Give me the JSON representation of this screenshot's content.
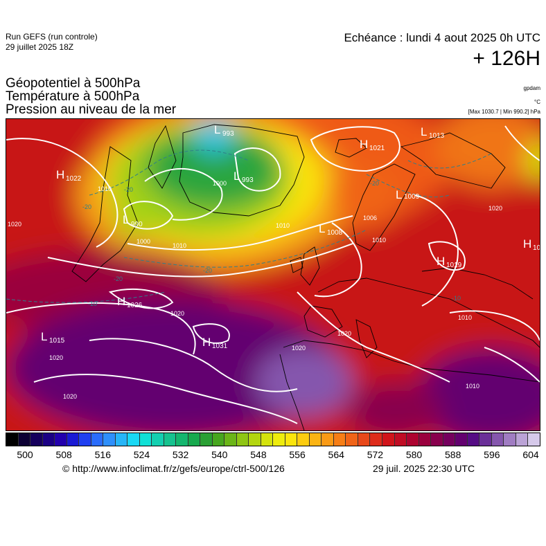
{
  "header": {
    "run_title": "Run GEFS (run controle)",
    "run_date": "29 juillet 2025 18Z",
    "echeance": "Echéance : lundi 4 aout 2025 0h UTC",
    "lead": "+ 126H"
  },
  "variables": [
    "Géopotentiel à 500hPa",
    "Température à 500hPa",
    "Pression au niveau de la mer"
  ],
  "units": {
    "gpdam": "gpdam",
    "celsius": "°C",
    "maxmin": "[Max 1030.7 | Min 990.2] hPa"
  },
  "colorbar": {
    "colors": [
      "#000000",
      "#0c0034",
      "#15005c",
      "#1b0084",
      "#2300ad",
      "#1a1ad4",
      "#1f3ff0",
      "#2a6cfb",
      "#2e8ffb",
      "#27b5f7",
      "#1ad8f4",
      "#10e0d6",
      "#14cfb0",
      "#16c28e",
      "#14b66e",
      "#17a94e",
      "#2a9f34",
      "#47a61f",
      "#6bb518",
      "#8fc514",
      "#b3d610",
      "#d4e30d",
      "#eeec0d",
      "#fbe50d",
      "#fccc10",
      "#fbb414",
      "#f99a16",
      "#f67e16",
      "#f06418",
      "#e8481a",
      "#de2c1b",
      "#d0141b",
      "#c00c24",
      "#ad0430",
      "#9a003e",
      "#88004d",
      "#75005e",
      "#63006f",
      "#550c84",
      "#6a2f98",
      "#8556ad",
      "#a07cc2",
      "#bba3d6",
      "#d6c9ea"
    ],
    "tick_labels": [
      "500",
      "508",
      "516",
      "524",
      "532",
      "540",
      "548",
      "556",
      "564",
      "572",
      "580",
      "588",
      "596",
      "604"
    ]
  },
  "map_labels": {
    "highs": [
      {
        "letter": "H",
        "value": "1022"
      },
      {
        "letter": "H",
        "value": "1021"
      },
      {
        "letter": "H",
        "value": "1026"
      },
      {
        "letter": "H",
        "value": "1031"
      },
      {
        "letter": "H",
        "value": "1019"
      },
      {
        "letter": "H",
        "value": "10"
      }
    ],
    "lows": [
      {
        "letter": "L",
        "value": "993"
      },
      {
        "letter": "L",
        "value": "993"
      },
      {
        "letter": "L",
        "value": "990"
      },
      {
        "letter": "L",
        "value": "1015"
      },
      {
        "letter": "L",
        "value": "1009"
      },
      {
        "letter": "L",
        "value": "1008"
      },
      {
        "letter": "L",
        "value": "1013"
      }
    ],
    "isobar_values": [
      "1010",
      "1000",
      "1010",
      "1020",
      "1020",
      "1020",
      "1020",
      "1020",
      "1010",
      "1020",
      "1010",
      "1000",
      "1006",
      "1020",
      "1010",
      "1010"
    ],
    "temp_values": [
      "-20",
      "-20",
      "-20",
      "-20",
      "-10",
      "-10",
      "-20"
    ]
  },
  "footer": {
    "url": "© http://www.infoclimat.fr/z/gefs/europe/ctrl-500/126",
    "timestamp": "29 juil. 2025 22:30 UTC"
  }
}
